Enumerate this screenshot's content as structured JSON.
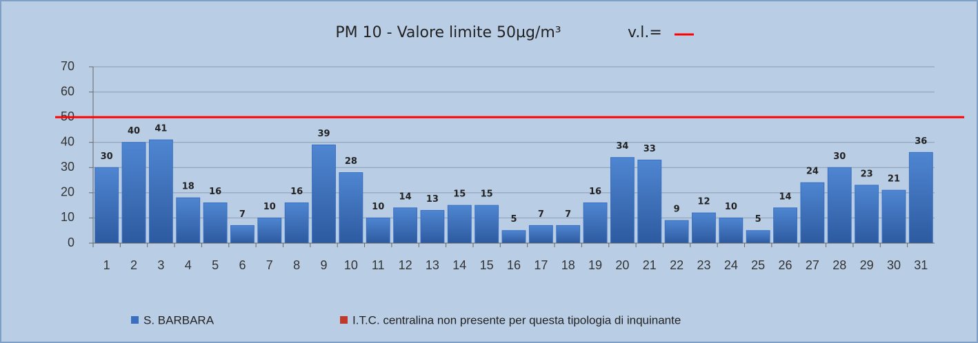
{
  "chart_data": {
    "type": "bar",
    "title": "PM 10 - Valore limite  50µg/m³",
    "annotation": "v.l.=",
    "categories": [
      "1",
      "2",
      "3",
      "4",
      "5",
      "6",
      "7",
      "8",
      "9",
      "10",
      "11",
      "12",
      "13",
      "14",
      "15",
      "16",
      "17",
      "18",
      "19",
      "20",
      "21",
      "22",
      "23",
      "24",
      "25",
      "26",
      "27",
      "28",
      "29",
      "30",
      "31"
    ],
    "series": [
      {
        "name": "S. BARBARA",
        "color": "#3a6fbf",
        "values": [
          30,
          40,
          41,
          18,
          16,
          7,
          10,
          16,
          39,
          28,
          10,
          14,
          13,
          15,
          15,
          5,
          7,
          7,
          16,
          34,
          33,
          9,
          12,
          10,
          5,
          14,
          24,
          30,
          23,
          21,
          36
        ]
      },
      {
        "name": "I.T.C. centralina non presente per questa tipologia di inquinante",
        "color": "#c0392b"
      }
    ],
    "limit": 50,
    "limit_color": "#ff0000",
    "ylim": [
      0,
      70
    ],
    "yticks": [
      0,
      10,
      20,
      30,
      40,
      50,
      60,
      70
    ],
    "grid": true
  }
}
